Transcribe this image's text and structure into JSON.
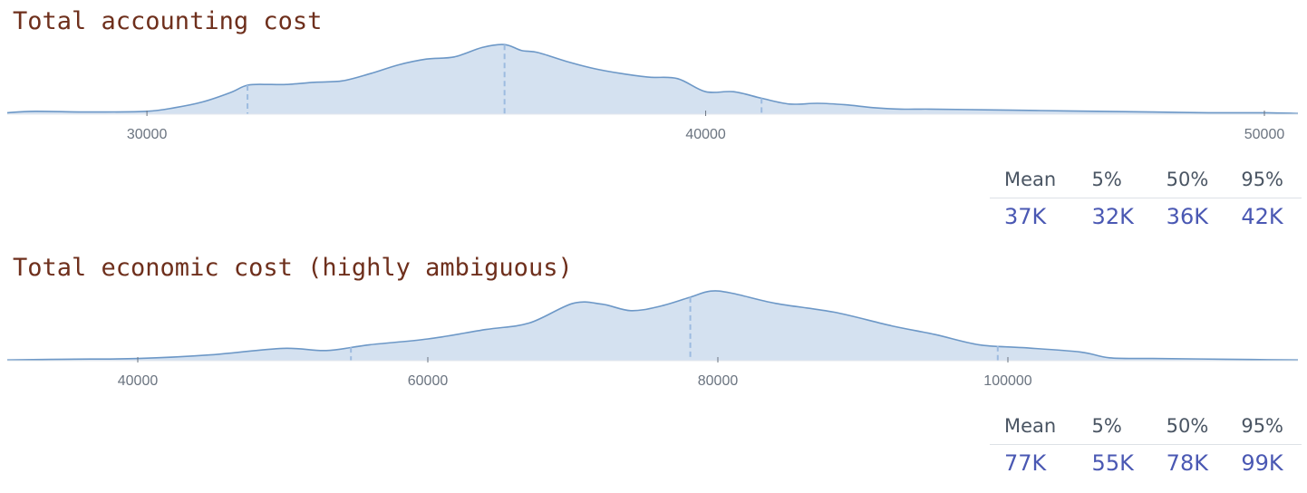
{
  "chart_data": [
    {
      "type": "area",
      "title": "Total accounting cost",
      "xlim": [
        27500,
        50600
      ],
      "ticks": [
        30000,
        40000,
        50000
      ],
      "tick_labels": [
        "30000",
        "40000",
        "50000"
      ],
      "percentile_markers": [
        31800,
        36400,
        41000
      ],
      "density": {
        "x": [
          27500,
          28000,
          29000,
          30000,
          30500,
          31000,
          31500,
          31800,
          32200,
          32500,
          33000,
          33500,
          34000,
          34500,
          35000,
          35500,
          36000,
          36400,
          36700,
          37000,
          37500,
          38000,
          38500,
          39000,
          39500,
          40000,
          40500,
          41000,
          41500,
          42000,
          42500,
          43000,
          43500,
          44000,
          45000,
          46000,
          47000,
          48000,
          49000,
          50000,
          50600
        ],
        "y": [
          0.02,
          0.04,
          0.03,
          0.04,
          0.09,
          0.17,
          0.3,
          0.4,
          0.41,
          0.41,
          0.44,
          0.46,
          0.56,
          0.68,
          0.76,
          0.79,
          0.92,
          0.96,
          0.88,
          0.85,
          0.73,
          0.63,
          0.56,
          0.51,
          0.49,
          0.31,
          0.31,
          0.22,
          0.14,
          0.15,
          0.13,
          0.09,
          0.07,
          0.07,
          0.06,
          0.05,
          0.04,
          0.03,
          0.02,
          0.02,
          0.01
        ]
      }
    },
    {
      "type": "area",
      "title": "Total economic cost (highly ambiguous)",
      "xlim": [
        31000,
        120000
      ],
      "ticks": [
        40000,
        60000,
        80000,
        100000
      ],
      "tick_labels": [
        "40000",
        "60000",
        "80000",
        "100000"
      ],
      "percentile_markers": [
        54700,
        78100,
        99300
      ],
      "density": {
        "x": [
          31000,
          35000,
          40000,
          45000,
          50000,
          53000,
          56000,
          60000,
          64000,
          67000,
          70000,
          72000,
          74000,
          76000,
          78000,
          79500,
          81000,
          84000,
          88000,
          92000,
          95000,
          98000,
          101000,
          105000,
          107000,
          110000,
          115000,
          120000
        ],
        "y": [
          0.01,
          0.02,
          0.03,
          0.08,
          0.17,
          0.14,
          0.22,
          0.3,
          0.43,
          0.52,
          0.79,
          0.78,
          0.69,
          0.75,
          0.87,
          0.96,
          0.93,
          0.79,
          0.67,
          0.48,
          0.36,
          0.22,
          0.18,
          0.12,
          0.04,
          0.03,
          0.02,
          0.01
        ]
      }
    }
  ],
  "stats": [
    {
      "headers": [
        "Mean",
        "5%",
        "50%",
        "95%"
      ],
      "values": [
        "37K",
        "32K",
        "36K",
        "42K"
      ]
    },
    {
      "headers": [
        "Mean",
        "5%",
        "50%",
        "95%"
      ],
      "values": [
        "77K",
        "55K",
        "78K",
        "99K"
      ]
    }
  ],
  "colors": {
    "area_fill": "#d4e1f0",
    "area_line": "#6d98c7",
    "marker_line": "#9dbbe0",
    "title": "#6e2f1c",
    "stat_value": "#4a58b3"
  }
}
